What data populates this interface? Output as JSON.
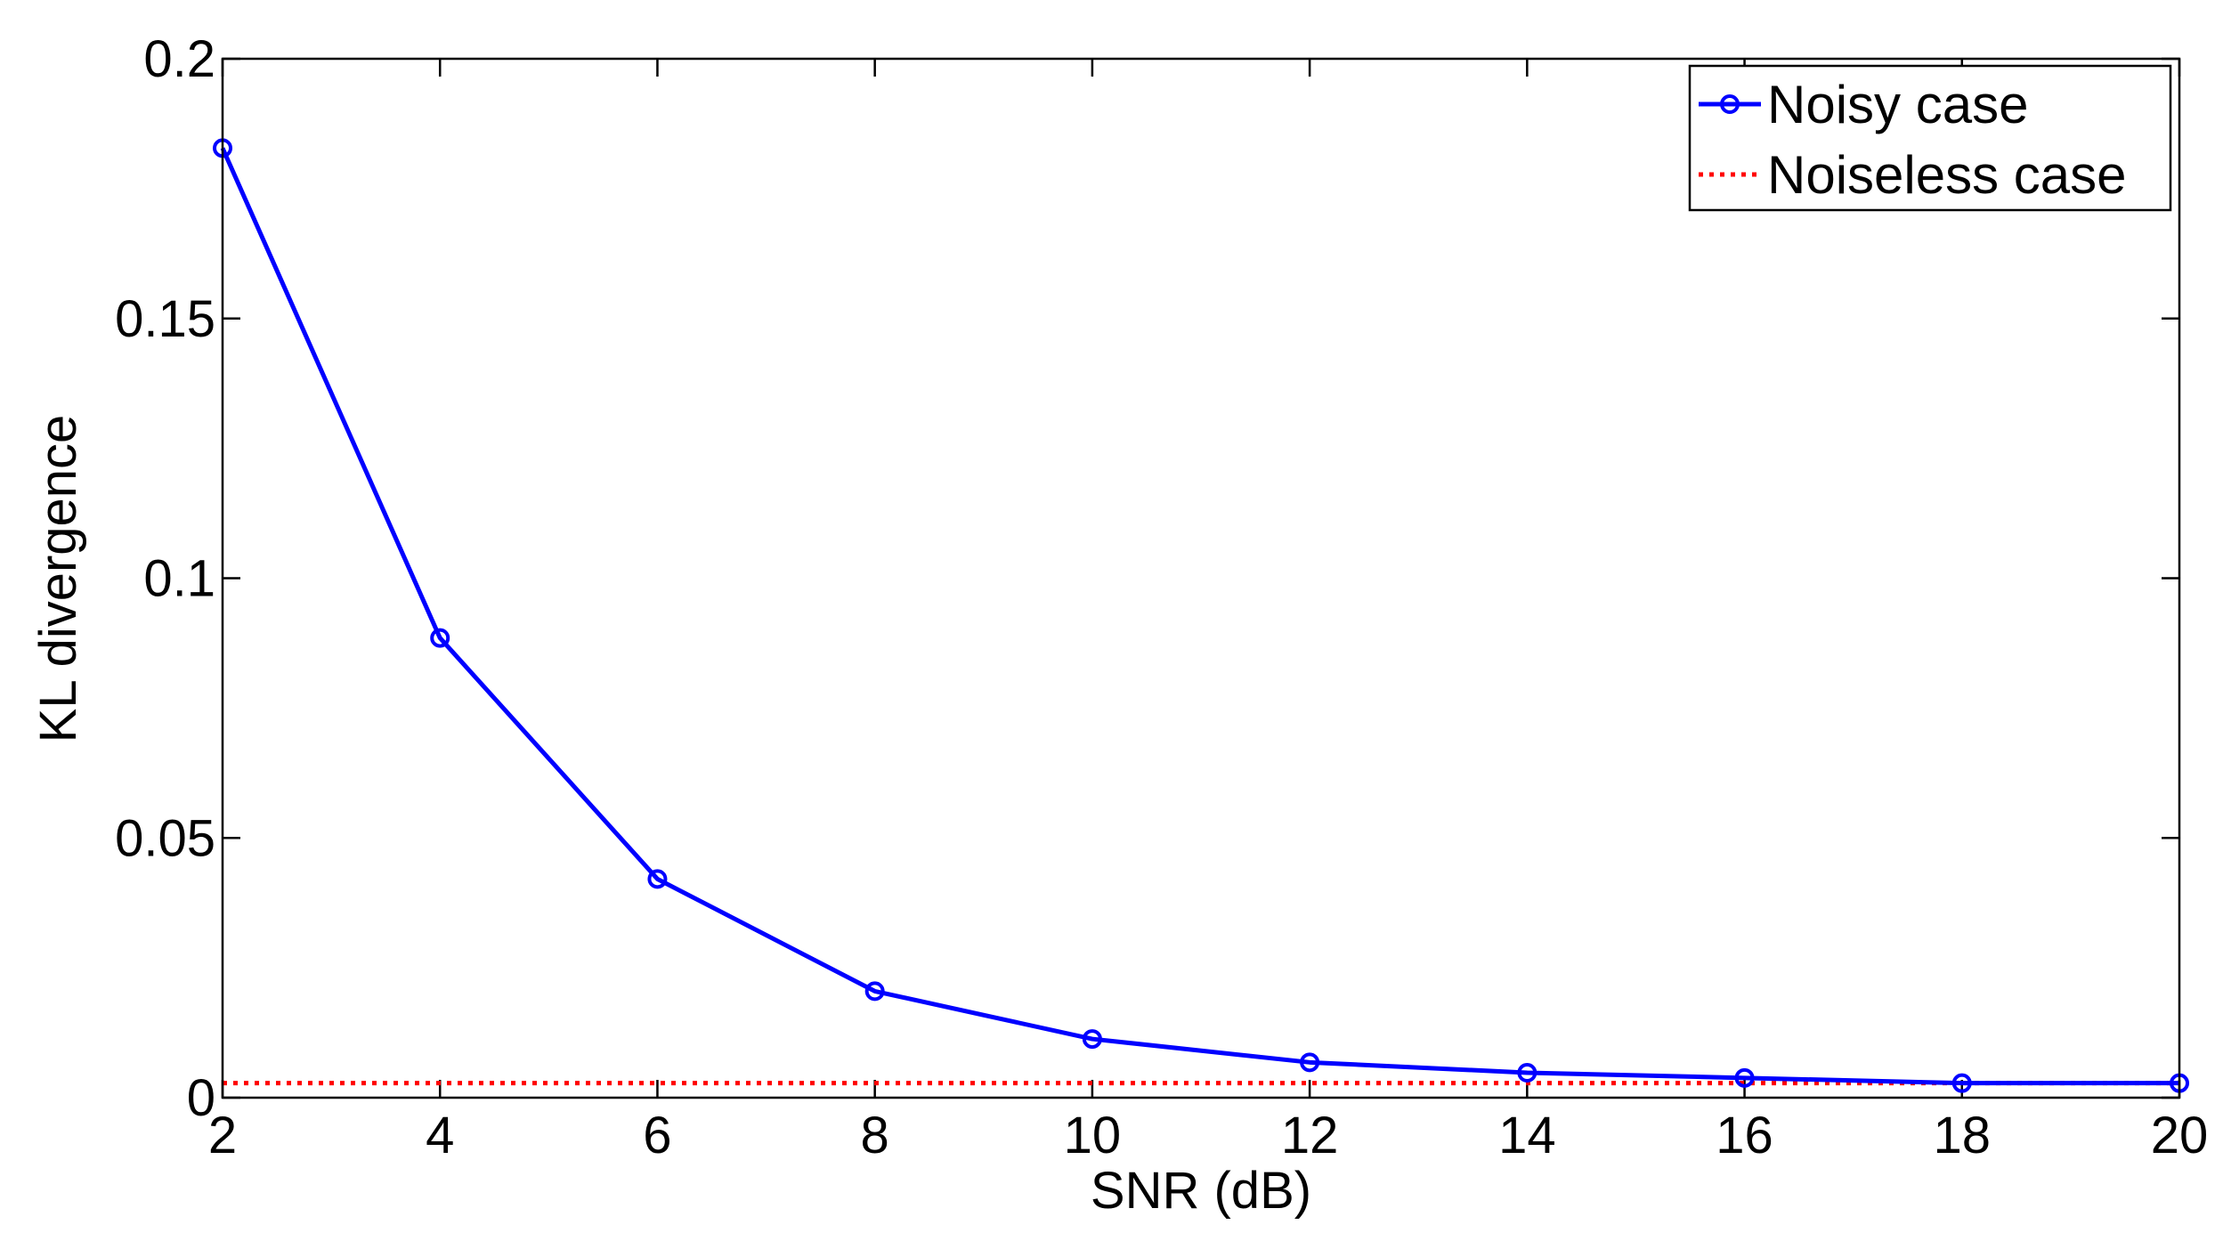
{
  "chart_data": {
    "type": "line",
    "title": "",
    "xlabel": "SNR (dB)",
    "ylabel": "KL divergence",
    "xlim": [
      2,
      20
    ],
    "ylim": [
      0,
      0.2
    ],
    "xticks": [
      2,
      4,
      6,
      8,
      10,
      12,
      14,
      16,
      18,
      20
    ],
    "yticks": [
      0,
      0.05,
      0.1,
      0.15,
      0.2
    ],
    "ytick_labels": [
      "0",
      "0.05",
      "0.1",
      "0.15",
      "0.2"
    ],
    "grid": false,
    "legend_position": "top-right",
    "x": [
      2,
      4,
      6,
      8,
      10,
      12,
      14,
      16,
      18,
      20
    ],
    "series": [
      {
        "name": "Noisy case",
        "color": "#0000ff",
        "line_style": "solid",
        "marker": "circle",
        "values": [
          0.1828,
          0.0885,
          0.0421,
          0.0205,
          0.0113,
          0.0068,
          0.0048,
          0.0038,
          0.0028,
          0.0028
        ]
      },
      {
        "name": "Noiseless case",
        "color": "#ff0000",
        "line_style": "dotted",
        "marker": "none",
        "values": [
          0.0028,
          0.0028,
          0.0028,
          0.0028,
          0.0028,
          0.0028,
          0.0028,
          0.0028,
          0.0028,
          0.0028
        ]
      }
    ]
  }
}
